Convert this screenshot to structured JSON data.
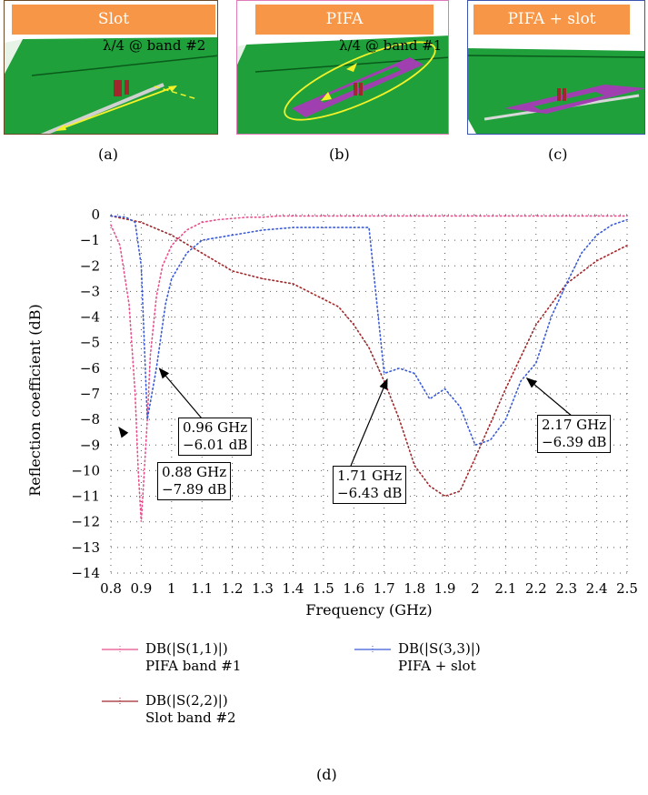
{
  "panels": {
    "a": {
      "title": "Slot",
      "note": "λ/4 @ band #2",
      "label": "(a)"
    },
    "b": {
      "title": "PIFA",
      "note": "λ/4 @ band #1",
      "label": "(b)"
    },
    "c": {
      "title": "PIFA + slot",
      "label": "(c)"
    },
    "d": {
      "label": "(d)"
    }
  },
  "colors": {
    "s11": "#e8508c",
    "s22": "#a0282c",
    "s33": "#3b5bd6",
    "ground": "#1fa03a",
    "pifa": "#a040b0",
    "title_bg": "#f79646"
  },
  "chart_data": {
    "type": "line",
    "xlabel": "Frequency (GHz)",
    "ylabel": "Reflection coefficient (dB)",
    "xlim": [
      0.8,
      2.5
    ],
    "ylim": [
      -14,
      0
    ],
    "xticks": [
      "0.8",
      "0.9",
      "1",
      "1.1",
      "1.2",
      "1.3",
      "1.4",
      "1.5",
      "1.6",
      "1.7",
      "1.8",
      "1.9",
      "2",
      "2.1",
      "2.2",
      "2.3",
      "2.4",
      "2.5"
    ],
    "yticks": [
      "0",
      "−1",
      "−2",
      "−3",
      "−4",
      "−5",
      "−6",
      "−7",
      "−8",
      "−9",
      "−10",
      "−11",
      "−12",
      "−13",
      "−14"
    ],
    "grid": true,
    "series": [
      {
        "name": "DB(|S(1,1)|)",
        "desc": "PIFA band #1",
        "color_key": "s11",
        "x": [
          0.8,
          0.83,
          0.86,
          0.88,
          0.89,
          0.9,
          0.91,
          0.92,
          0.93,
          0.95,
          0.97,
          1.0,
          1.05,
          1.1,
          1.15,
          1.2,
          1.25,
          1.3,
          1.35,
          1.4,
          1.45,
          1.5,
          1.6,
          1.7,
          1.8,
          1.9,
          2.0,
          2.1,
          2.2,
          2.3,
          2.4,
          2.5
        ],
        "y": [
          -0.4,
          -1.2,
          -3.5,
          -7.0,
          -10.0,
          -12.0,
          -10.0,
          -8.0,
          -5.5,
          -3.2,
          -2.0,
          -1.2,
          -0.6,
          -0.3,
          -0.2,
          -0.15,
          -0.1,
          -0.1,
          -0.05,
          -0.05,
          -0.05,
          -0.05,
          -0.05,
          -0.05,
          -0.05,
          -0.05,
          -0.05,
          -0.05,
          -0.05,
          -0.05,
          -0.05,
          -0.05
        ]
      },
      {
        "name": "DB(|S(2,2)|)",
        "desc": "Slot band #2",
        "color_key": "s22",
        "x": [
          0.8,
          0.9,
          1.0,
          1.1,
          1.2,
          1.3,
          1.4,
          1.5,
          1.55,
          1.6,
          1.65,
          1.7,
          1.75,
          1.8,
          1.85,
          1.9,
          1.95,
          2.0,
          2.1,
          2.2,
          2.3,
          2.4,
          2.5
        ],
        "y": [
          -0.05,
          -0.3,
          -0.8,
          -1.5,
          -2.2,
          -2.5,
          -2.7,
          -3.3,
          -3.6,
          -4.3,
          -5.2,
          -6.5,
          -8.0,
          -9.8,
          -10.6,
          -11.0,
          -10.8,
          -9.5,
          -6.8,
          -4.3,
          -2.7,
          -1.8,
          -1.2
        ]
      },
      {
        "name": "DB(|S(3,3)|)",
        "desc": "PIFA + slot",
        "color_key": "s33",
        "x": [
          0.8,
          0.85,
          0.88,
          0.9,
          0.92,
          0.95,
          0.98,
          1.0,
          1.05,
          1.1,
          1.2,
          1.3,
          1.4,
          1.5,
          1.6,
          1.65,
          1.7,
          1.75,
          1.8,
          1.85,
          1.9,
          1.95,
          2.0,
          2.05,
          2.1,
          2.15,
          2.2,
          2.25,
          2.3,
          2.35,
          2.4,
          2.45,
          2.5
        ],
        "y": [
          -0.05,
          -0.1,
          -0.3,
          -2.0,
          -8.0,
          -6.0,
          -3.5,
          -2.5,
          -1.5,
          -1.0,
          -0.8,
          -0.6,
          -0.5,
          -0.5,
          -0.5,
          -0.5,
          -6.2,
          -6.0,
          -6.2,
          -7.2,
          -6.8,
          -7.5,
          -9.0,
          -8.8,
          -8.0,
          -6.5,
          -5.8,
          -4.0,
          -2.7,
          -1.5,
          -0.8,
          -0.4,
          -0.2
        ]
      }
    ],
    "annotations": [
      {
        "line1": "0.96 GHz",
        "line2": "−6.01 dB",
        "x": 0.96,
        "y": -6.01
      },
      {
        "line1": "0.88 GHz",
        "line2": "−7.89 dB",
        "x": 0.88,
        "y": -7.89
      },
      {
        "line1": "1.71 GHz",
        "line2": "−6.43 dB",
        "x": 1.71,
        "y": -6.43
      },
      {
        "line1": "2.17 GHz",
        "line2": "−6.39 dB",
        "x": 2.17,
        "y": -6.39
      }
    ]
  }
}
